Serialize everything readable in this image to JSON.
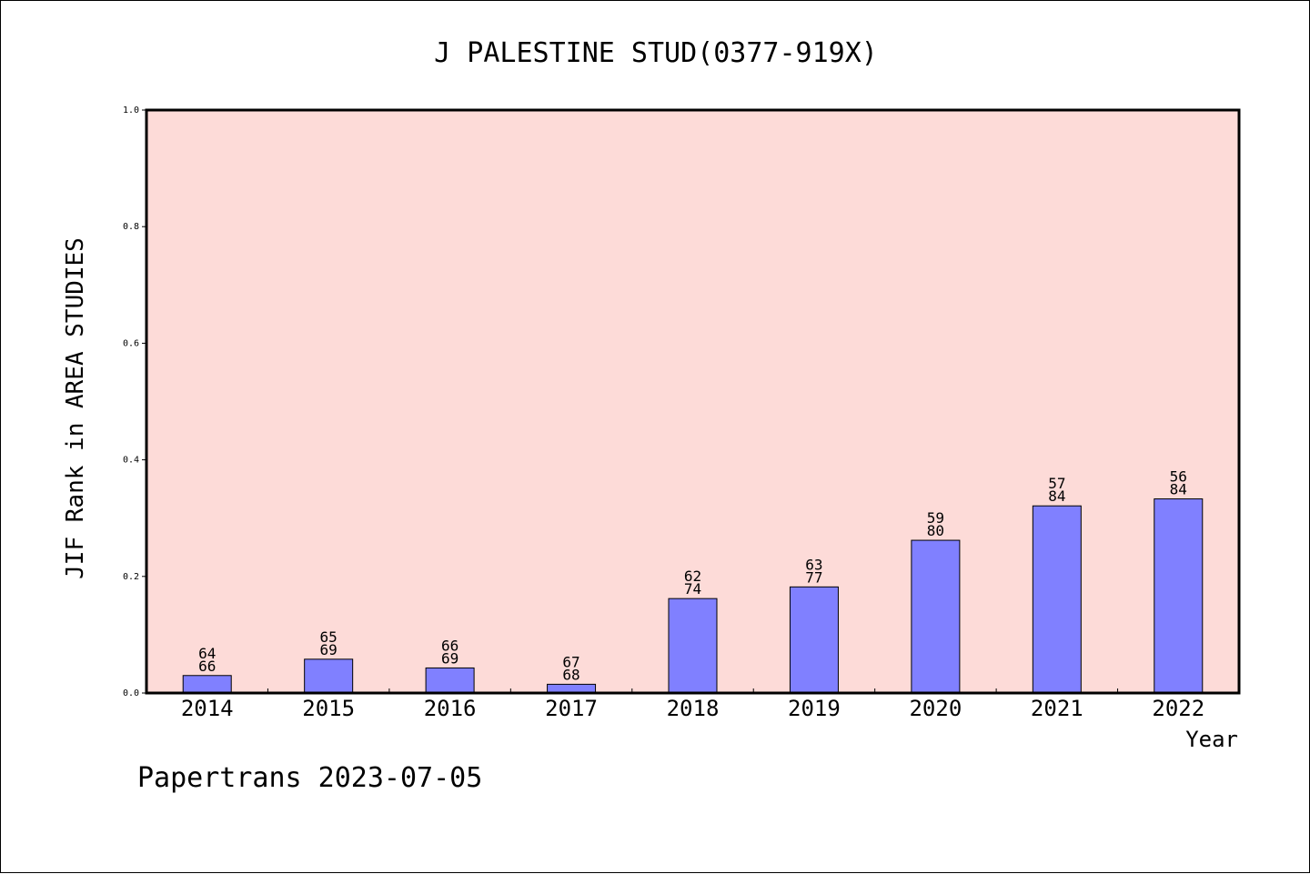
{
  "chart_data": {
    "type": "bar",
    "title": "J PALESTINE STUD(0377-919X)",
    "ylabel": "JIF Rank in AREA STUDIES",
    "xlabel": "Year",
    "categories": [
      "2014",
      "2015",
      "2016",
      "2017",
      "2018",
      "2019",
      "2020",
      "2021",
      "2022"
    ],
    "values": [
      0.03,
      0.058,
      0.043,
      0.015,
      0.162,
      0.182,
      0.262,
      0.321,
      0.333
    ],
    "rank": [
      "64",
      "65",
      "66",
      "67",
      "62",
      "63",
      "59",
      "57",
      "56"
    ],
    "total": [
      "66",
      "69",
      "69",
      "68",
      "74",
      "77",
      "80",
      "84",
      "84"
    ],
    "ylim": [
      0,
      1.0
    ],
    "yticks": [
      "0.0",
      "0.2",
      "0.4",
      "0.6",
      "0.8",
      "1.0"
    ],
    "grid": false,
    "colors": {
      "plot_background": "#fddbd8",
      "bar_fill": "#8080ff",
      "bar_stroke": "#000000"
    }
  },
  "footer": "Papertrans 2023-07-05"
}
